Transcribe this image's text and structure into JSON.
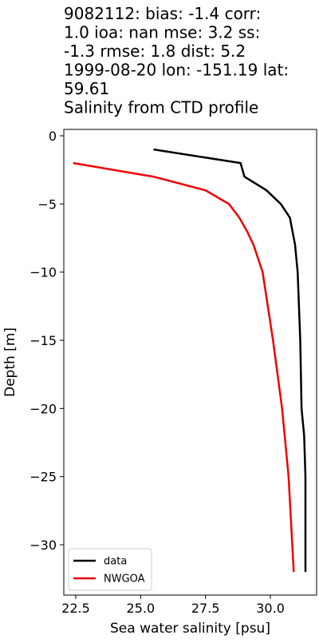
{
  "chart_data": {
    "type": "line",
    "title": [
      "9082112: bias: -1.4  corr:",
      "1.0  ioa: nan  mse: 3.2  ss:",
      "-1.3  rmse: 1.8  dist: 5.2",
      "1999-08-20 lon: -151.19 lat:",
      "59.61",
      "Salinity from CTD profile"
    ],
    "x_label": "Sea water salinity [psu]",
    "y_label": "Depth [m]",
    "xlim": [
      22.04,
      31.78
    ],
    "ylim": [
      -33.69,
      0.47
    ],
    "xticks": [
      22.5,
      {
        "value": 25,
        "label": "25.0"
      },
      27.5,
      {
        "value": 30,
        "label": "30.0"
      }
    ],
    "yticks": [
      0,
      {
        "value": -5,
        "label": "−5"
      },
      {
        "value": -10,
        "label": "−10"
      },
      {
        "value": -15,
        "label": "−15"
      },
      {
        "value": -20,
        "label": "−20"
      },
      {
        "value": -25,
        "label": "−25"
      },
      {
        "value": -30,
        "label": "−30"
      }
    ],
    "legend": "lower left",
    "series": [
      {
        "name": "data",
        "color": "#000000",
        "x": [
          25.5,
          28.85,
          29.0,
          29.85,
          30.4,
          30.75,
          30.95,
          31.05,
          31.15,
          31.2,
          31.3,
          31.35,
          31.35,
          31.35
        ],
        "values": [
          -1,
          -2,
          -3,
          -4,
          -5,
          -6,
          -8,
          -10,
          -15,
          -20,
          -22,
          -25,
          -30,
          -32
        ]
      },
      {
        "name": "NWGOA",
        "color": "#ee0000",
        "x": [
          22.4,
          25.5,
          27.5,
          28.4,
          28.8,
          29.1,
          29.35,
          29.7,
          30.1,
          30.45,
          30.7,
          30.9
        ],
        "values": [
          -2,
          -3,
          -4,
          -5,
          -6,
          -7,
          -8,
          -10,
          -15,
          -20,
          -25,
          -32
        ]
      }
    ]
  }
}
